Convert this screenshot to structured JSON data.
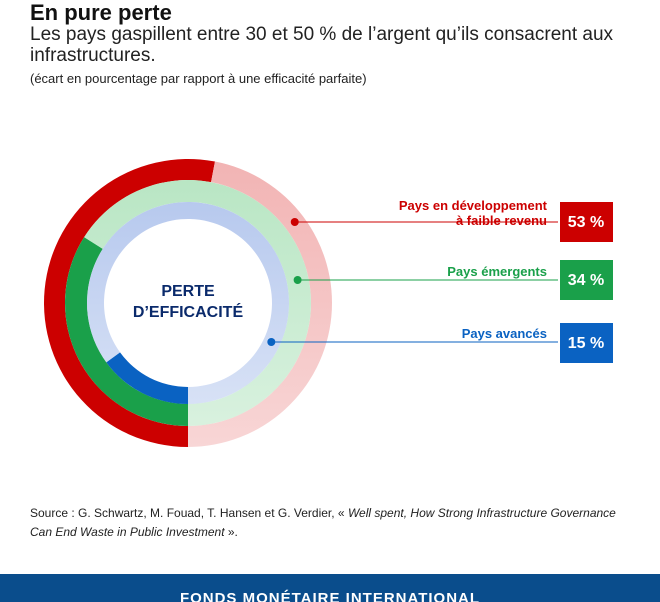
{
  "header": {
    "title": "En pure perte",
    "subtitle": "Les pays gaspillent entre 30 et 50 % de l’argent qu’ils consacrent aux infrastructures.",
    "note": "(écart en pourcentage par rapport à une efficacité parfaite)"
  },
  "chart_data": {
    "type": "pie",
    "title": "En pure perte",
    "center_label": [
      "PERTE",
      "D’EFFICACITÉ"
    ],
    "series": [
      {
        "name": "Pays en développement à faible revenu",
        "label_lines": [
          "Pays en développement",
          "à faible revenu"
        ],
        "value": 53,
        "value_label": "53 %",
        "color": "#cc0000",
        "rest_color": "#f2b4b4"
      },
      {
        "name": "Pays émergents",
        "label_lines": [
          "Pays émergents"
        ],
        "value": 34,
        "value_label": "34 %",
        "color": "#1aa04a",
        "rest_color": "#b9e6c4"
      },
      {
        "name": "Pays avancés",
        "label_lines": [
          "Pays avancés"
        ],
        "value": 15,
        "value_label": "15 %",
        "color": "#0a62c2",
        "rest_color": "#b7c9ee"
      }
    ]
  },
  "source": {
    "prefix": "Source : G. Schwartz, M. Fouad, T. Hansen et G. Verdier, « ",
    "title": "Well spent, How Strong Infrastructure Governance Can End Waste in Public Investment",
    "suffix": " »."
  },
  "footer": {
    "org": "FONDS MONÉTAIRE INTERNATIONAL"
  }
}
